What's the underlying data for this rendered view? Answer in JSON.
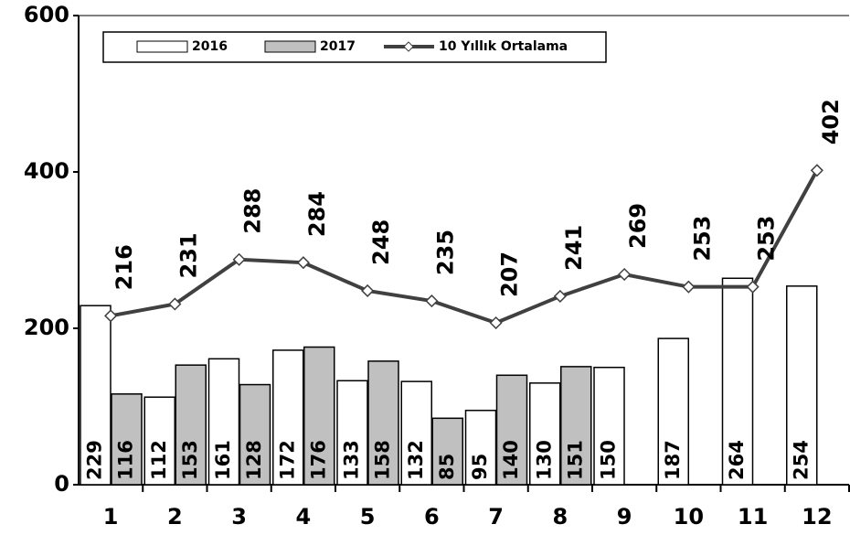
{
  "chart_data": {
    "type": "bar",
    "categories": [
      "1",
      "2",
      "3",
      "4",
      "5",
      "6",
      "7",
      "8",
      "9",
      "10",
      "11",
      "12"
    ],
    "series": [
      {
        "name": "2016",
        "color": "#ffffff",
        "values": [
          229,
          112,
          161,
          172,
          133,
          132,
          95,
          130,
          150,
          187,
          264,
          254
        ]
      },
      {
        "name": "2017",
        "color": "#c0c0c0",
        "values": [
          116,
          153,
          128,
          176,
          158,
          85,
          140,
          151,
          null,
          null,
          null,
          null
        ]
      },
      {
        "name": "10 Yıllık Ortalama",
        "type": "line",
        "color": "#404040",
        "values": [
          216,
          231,
          288,
          284,
          248,
          235,
          207,
          241,
          269,
          253,
          253,
          402
        ]
      }
    ],
    "ylim": [
      0,
      600
    ],
    "yticks": [
      0,
      200,
      400,
      600
    ],
    "grid": false,
    "legend": "top"
  }
}
